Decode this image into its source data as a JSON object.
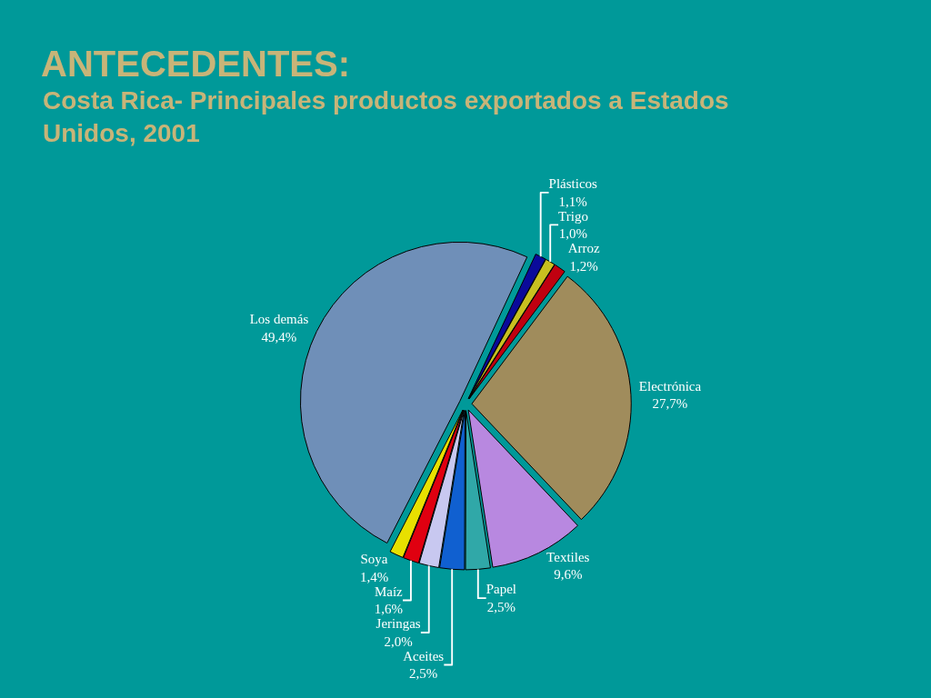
{
  "chart_data": {
    "type": "pie",
    "title": "ANTECEDENTES:",
    "subtitle": "Costa Rica- Principales productos exportados a Estados Unidos, 2001",
    "categories": [
      "Plásticos",
      "Trigo",
      "Arroz",
      "Electrónica",
      "Textiles",
      "Papel",
      "Aceites",
      "Jeringas",
      "Maíz",
      "Soya",
      "Los demás"
    ],
    "values": [
      1.1,
      1.0,
      1.2,
      27.7,
      9.6,
      2.5,
      2.5,
      2.0,
      1.6,
      1.4,
      49.4
    ],
    "value_labels": [
      "1,1%",
      "1,0%",
      "1,2%",
      "27,7%",
      "9,6%",
      "2,5%",
      "2,5%",
      "2,0%",
      "1,6%",
      "1,4%",
      "49,4%"
    ],
    "colors": [
      "#0a0a9a",
      "#c8c020",
      "#c00010",
      "#a08c5c",
      "#b888e0",
      "#30a8a8",
      "#1060d0",
      "#c8c8f0",
      "#e00010",
      "#e8e000",
      "#6f8fb8"
    ]
  }
}
